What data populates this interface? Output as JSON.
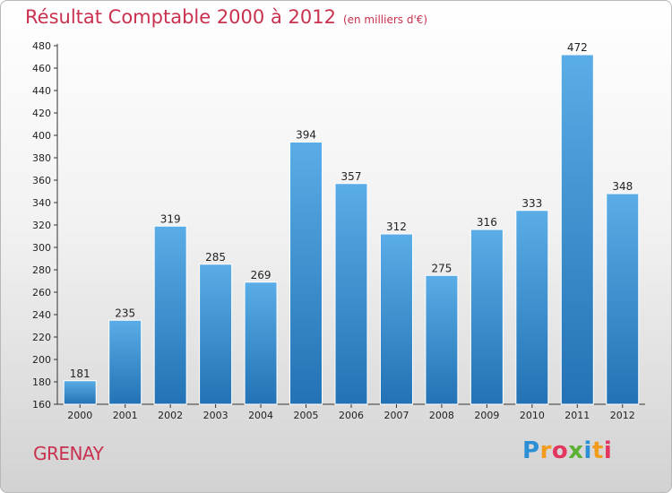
{
  "title": "Résultat Comptable 2000 à 2012",
  "subtitle": "(en milliers d'€)",
  "commune": "GRENAY",
  "logo": {
    "letters": [
      "P",
      "r",
      "o",
      "x",
      "i",
      "t",
      "i"
    ],
    "colors": [
      "#2b8fd6",
      "#f29b1d",
      "#e2365f",
      "#5bb133",
      "#2b8fd6",
      "#f29b1d",
      "#e2365f"
    ]
  },
  "colors": {
    "bar_top": "#5aade6",
    "bar_bottom": "#2272b5",
    "title": "#c8314f"
  },
  "chart_data": {
    "type": "bar",
    "categories": [
      "2000",
      "2001",
      "2002",
      "2003",
      "2004",
      "2005",
      "2006",
      "2007",
      "2008",
      "2009",
      "2010",
      "2011",
      "2012"
    ],
    "values": [
      181,
      235,
      319,
      285,
      269,
      394,
      357,
      312,
      275,
      316,
      333,
      472,
      348
    ],
    "ylim": [
      160,
      480
    ],
    "yticks": [
      160,
      180,
      200,
      220,
      240,
      260,
      280,
      300,
      320,
      340,
      360,
      380,
      400,
      420,
      440,
      460,
      480
    ],
    "grid": false
  }
}
